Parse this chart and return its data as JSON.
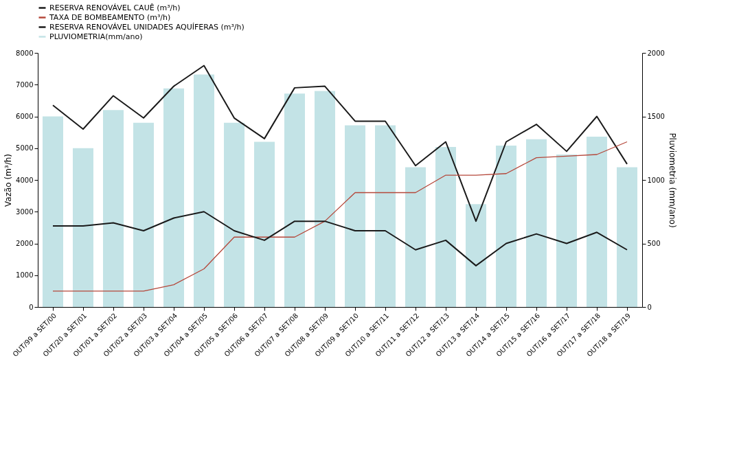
{
  "chart_data": {
    "type": "line",
    "categories": [
      "OUT/99 a SET/00",
      "OUT/20 a SET/01",
      "OUT/01 a SET/02",
      "OUT/02 a SET/03",
      "OUT/03 a SET/04",
      "OUT/04 a SET/05",
      "OUT/05 a SET/06",
      "OUT/06 a SET/07",
      "OUT/07 a SET/08",
      "OUT/08 a SET/09",
      "OUT/09 a SET/10",
      "OUT/10 a SET/11",
      "OUT/11 a SET/12",
      "OUT/12 a SET/13",
      "OUT/13 a SET/14",
      "OUT/14 a SET/15",
      "OUT/15 a SET/16",
      "OUT/16 a SET/17",
      "OUT/17 a SET/18",
      "OUT/18 a SET/19"
    ],
    "series": [
      {
        "name": "RESERVA RENOVÁVEL CAUÊ (m³/h)",
        "color": "#1a1a1a",
        "values": [
          6350,
          5600,
          6650,
          5950,
          6950,
          7600,
          5950,
          5300,
          6900,
          6950,
          5850,
          5850,
          4450,
          5200,
          2700,
          5200,
          5750,
          4900,
          6000,
          4500
        ]
      },
      {
        "name": "TAXA DE BOMBEAMENTO (m³/h)",
        "color": "#b5473a",
        "values": [
          500,
          500,
          500,
          500,
          700,
          1200,
          2200,
          2200,
          2200,
          2700,
          3600,
          3600,
          3600,
          4150,
          4150,
          4200,
          4700,
          4750,
          4800,
          5200
        ]
      },
      {
        "name": "RESERVA RENOVÁVEL UNIDADES AQUÍFERAS (m³/h)",
        "color": "#1a1a1a",
        "values": [
          2550,
          2550,
          2650,
          2400,
          2800,
          3000,
          2400,
          2100,
          2700,
          2700,
          2400,
          2400,
          1800,
          2100,
          1300,
          2000,
          2300,
          2000,
          2350,
          1800
        ]
      },
      {
        "name": "PLUVIOMETRIA(mm/ano)",
        "type": "bar",
        "axis": "y2",
        "color": "#c3e3e6",
        "values": [
          1500,
          1250,
          1550,
          1450,
          1720,
          1830,
          1450,
          1300,
          1680,
          1700,
          1430,
          1430,
          1100,
          1260,
          810,
          1270,
          1320,
          1200,
          1340,
          1100
        ]
      }
    ],
    "ylabel": "Vazão (m³/h)",
    "y2label": "Pluviometria (mm/ano)",
    "ylim": [
      0,
      8000
    ],
    "yticks": [
      0,
      1000,
      2000,
      3000,
      4000,
      5000,
      6000,
      7000,
      8000
    ],
    "y2lim": [
      0,
      2000
    ],
    "y2ticks": [
      0,
      500,
      1000,
      1500,
      2000
    ],
    "legend": "top left"
  }
}
